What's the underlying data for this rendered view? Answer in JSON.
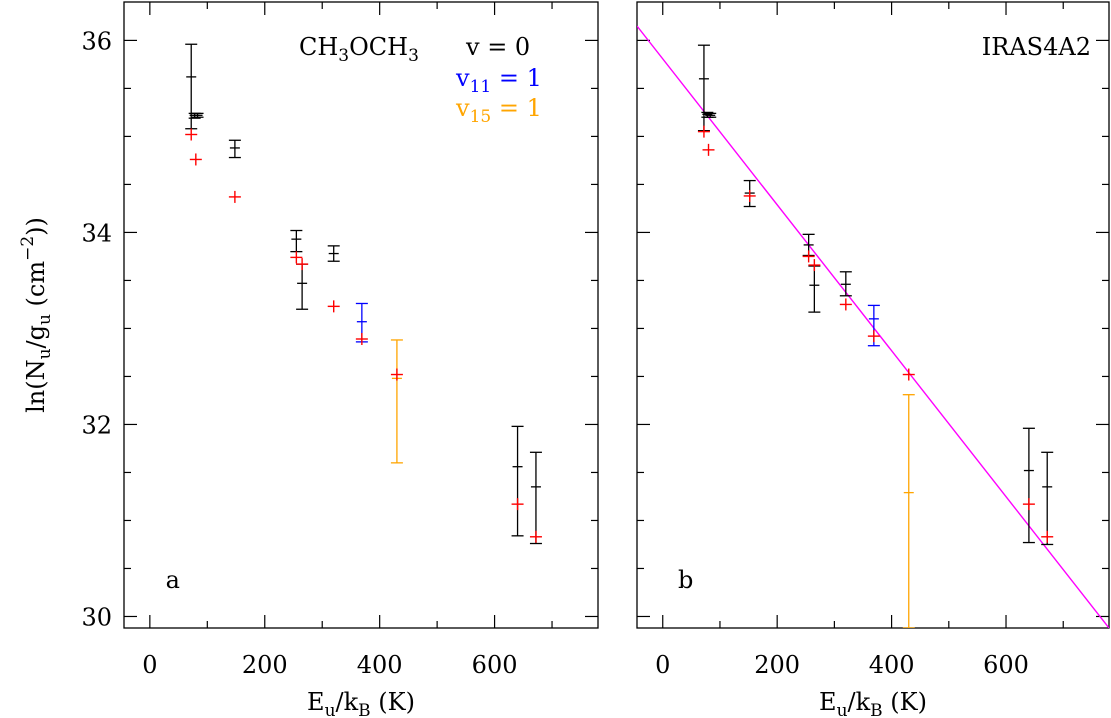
{
  "chart_data": {
    "type": "scatter",
    "ylabel": "ln(Nu/gu (cm−2))",
    "xlabel": "Eu/kB (K)",
    "xlim": [
      -45,
      780
    ],
    "ylim": [
      29.88,
      36.4
    ],
    "x_ticks": [
      "0",
      "200",
      "400",
      "600"
    ],
    "y_ticks": [
      "30",
      "32",
      "34",
      "36"
    ],
    "legend": {
      "molecule": "CH3OCH3",
      "entries": [
        {
          "label": "v = 0",
          "color": "#000000"
        },
        {
          "label": "v11 = 1",
          "color": "#0000ff"
        },
        {
          "label": "v15 = 1",
          "color": "#ffa500"
        }
      ]
    },
    "panels": [
      {
        "label": "a",
        "title": "",
        "observed": [
          {
            "x": 72,
            "y": 35.62,
            "ylow": 35.08,
            "yhigh": 35.96,
            "state": "v=0"
          },
          {
            "x": 78,
            "y": 35.22,
            "ylow": 35.19,
            "yhigh": 35.24,
            "state": "v=0"
          },
          {
            "x": 83,
            "y": 35.22,
            "ylow": 35.2,
            "yhigh": 35.24,
            "state": "v=0"
          },
          {
            "x": 148,
            "y": 34.88,
            "ylow": 34.78,
            "yhigh": 34.96,
            "state": "v=0"
          },
          {
            "x": 255,
            "y": 33.93,
            "ylow": 33.8,
            "yhigh": 34.02,
            "state": "v=0"
          },
          {
            "x": 265,
            "y": 33.47,
            "ylow": 33.2,
            "yhigh": 33.67,
            "state": "v=0"
          },
          {
            "x": 320,
            "y": 33.78,
            "ylow": 33.7,
            "yhigh": 33.86,
            "state": "v=0"
          },
          {
            "x": 369,
            "y": 33.07,
            "ylow": 32.86,
            "yhigh": 33.26,
            "state": "v11=1"
          },
          {
            "x": 430,
            "y": 32.48,
            "ylow": 31.6,
            "yhigh": 32.88,
            "state": "v15=1"
          },
          {
            "x": 640,
            "y": 31.56,
            "ylow": 30.84,
            "yhigh": 31.98,
            "state": "v=0"
          },
          {
            "x": 672,
            "y": 31.35,
            "ylow": 30.76,
            "yhigh": 31.71,
            "state": "v=0"
          }
        ],
        "model": [
          {
            "x": 72,
            "y": 35.02
          },
          {
            "x": 80,
            "y": 34.76
          },
          {
            "x": 148,
            "y": 34.37
          },
          {
            "x": 255,
            "y": 33.74
          },
          {
            "x": 265,
            "y": 33.67
          },
          {
            "x": 320,
            "y": 33.23
          },
          {
            "x": 369,
            "y": 32.89
          },
          {
            "x": 430,
            "y": 32.52
          },
          {
            "x": 640,
            "y": 31.17
          },
          {
            "x": 672,
            "y": 30.83
          }
        ]
      },
      {
        "label": "b",
        "title": "IRAS4A2",
        "observed": [
          {
            "x": 72,
            "y": 35.6,
            "ylow": 35.06,
            "yhigh": 35.95,
            "state": "v=0"
          },
          {
            "x": 78,
            "y": 35.23,
            "ylow": 35.2,
            "yhigh": 35.25,
            "state": "v=0"
          },
          {
            "x": 83,
            "y": 35.22,
            "ylow": 35.2,
            "yhigh": 35.24,
            "state": "v=0"
          },
          {
            "x": 152,
            "y": 34.41,
            "ylow": 34.27,
            "yhigh": 34.54,
            "state": "v=0"
          },
          {
            "x": 255,
            "y": 33.87,
            "ylow": 33.76,
            "yhigh": 33.98,
            "state": "v=0"
          },
          {
            "x": 265,
            "y": 33.45,
            "ylow": 33.17,
            "yhigh": 33.65,
            "state": "v=0"
          },
          {
            "x": 320,
            "y": 33.46,
            "ylow": 33.34,
            "yhigh": 33.59,
            "state": "v=0"
          },
          {
            "x": 369,
            "y": 33.1,
            "ylow": 32.82,
            "yhigh": 33.24,
            "state": "v11=1"
          },
          {
            "x": 430,
            "y": 31.29,
            "ylow": 29.88,
            "yhigh": 32.31,
            "state": "v15=1"
          },
          {
            "x": 640,
            "y": 31.52,
            "ylow": 30.77,
            "yhigh": 31.96,
            "state": "v=0"
          },
          {
            "x": 672,
            "y": 31.35,
            "ylow": 30.75,
            "yhigh": 31.71,
            "state": "v=0"
          }
        ],
        "model": [
          {
            "x": 72,
            "y": 35.05
          },
          {
            "x": 80,
            "y": 34.86
          },
          {
            "x": 152,
            "y": 34.38
          },
          {
            "x": 255,
            "y": 33.75
          },
          {
            "x": 265,
            "y": 33.66
          },
          {
            "x": 320,
            "y": 33.25
          },
          {
            "x": 369,
            "y": 32.92
          },
          {
            "x": 430,
            "y": 32.52
          },
          {
            "x": 640,
            "y": 31.17
          },
          {
            "x": 672,
            "y": 30.83
          }
        ],
        "fit_line": {
          "x": [
            -45,
            780
          ],
          "y": [
            36.15,
            29.88
          ],
          "color": "#ff00ff"
        }
      }
    ],
    "colors": {
      "v=0": "#000000",
      "v11=1": "#0000ff",
      "v15=1": "#ffa500",
      "model": "#ff0000",
      "fit": "#ff00ff"
    }
  }
}
